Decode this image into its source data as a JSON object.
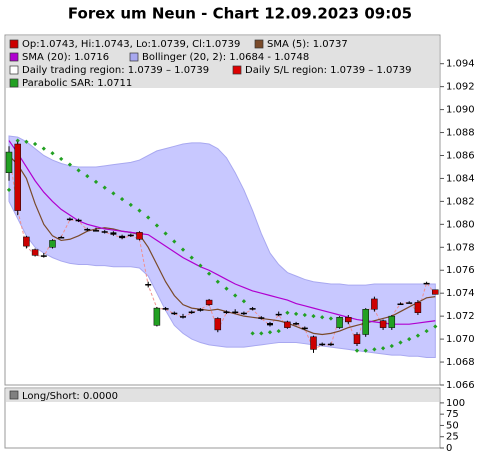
{
  "chart_data": [
    {
      "type": "candlestick",
      "title": "Forex um Neun - Chart 12.09.2023 09:05",
      "ylim": [
        1.066,
        1.0965
      ],
      "yticks": [
        1.066,
        1.068,
        {
          "value": 1.07,
          "label": "1.070"
        },
        1.072,
        1.074,
        1.076,
        1.078,
        {
          "value": 1.08,
          "label": "1.080"
        },
        1.082,
        1.084,
        1.086,
        1.088,
        {
          "value": 1.09,
          "label": "1.090"
        },
        1.092,
        1.094
      ],
      "up_color": "#22a022",
      "down_color": "#cc0000",
      "series": [
        {
          "name": "Op:1.0743, Hi:1.0743, Lo:1.0739, Cl:1.0739",
          "color": "#cc0000",
          "open": [
            1.0845,
            1.087,
            1.0789,
            1.0778,
            1.0773,
            1.078,
            1.0789,
            1.0805,
            1.0804,
            1.0796,
            1.0795,
            1.0794,
            1.0793,
            1.079,
            1.0791,
            1.0793,
            1.0748,
            1.0712,
            1.0727,
            1.0723,
            1.072,
            1.0724,
            1.0725,
            1.0734,
            1.0718,
            1.0724,
            1.0724,
            1.0723,
            1.0727,
            1.0719,
            1.0714,
            1.0722,
            1.0715,
            1.0714,
            1.071,
            1.0702,
            1.0696,
            1.0696,
            1.071,
            1.0719,
            1.0704,
            1.0704,
            1.0735,
            1.0716,
            1.071,
            1.0731,
            1.0732,
            1.0732,
            1.0749,
            1.0743
          ],
          "high": [
            1.0868,
            1.0872,
            1.079,
            1.0779,
            1.0775,
            1.0787,
            1.079,
            1.0806,
            1.0805,
            1.0797,
            1.0797,
            1.0795,
            1.0794,
            1.0791,
            1.0792,
            1.0794,
            1.075,
            1.0728,
            1.0728,
            1.0724,
            1.0722,
            1.0725,
            1.0727,
            1.0735,
            1.0719,
            1.0725,
            1.0726,
            1.0724,
            1.0728,
            1.072,
            1.0715,
            1.0724,
            1.0716,
            1.0715,
            1.0711,
            1.0703,
            1.0697,
            1.0697,
            1.072,
            1.0721,
            1.0706,
            1.0727,
            1.0737,
            1.0717,
            1.0721,
            1.0732,
            1.0733,
            1.0734,
            1.075,
            1.0743
          ],
          "low": [
            1.0838,
            1.0808,
            1.0779,
            1.0772,
            1.0771,
            1.0779,
            1.0788,
            1.0803,
            1.0802,
            1.0794,
            1.0794,
            1.0792,
            1.079,
            1.0787,
            1.0789,
            1.0786,
            1.0745,
            1.0711,
            1.0725,
            1.0721,
            1.0718,
            1.0722,
            1.0724,
            1.0729,
            1.0706,
            1.0722,
            1.0722,
            1.0721,
            1.0725,
            1.0717,
            1.0711,
            1.072,
            1.0709,
            1.0712,
            1.0708,
            1.0688,
            1.0694,
            1.0694,
            1.0709,
            1.0713,
            1.0694,
            1.0702,
            1.0724,
            1.0708,
            1.0708,
            1.073,
            1.0731,
            1.0721,
            1.0748,
            1.0739
          ],
          "close": [
            1.0863,
            1.0812,
            1.0781,
            1.0773,
            1.0772,
            1.0786,
            1.0789,
            1.0804,
            1.0803,
            1.0795,
            1.0795,
            1.0793,
            1.0791,
            1.0788,
            1.079,
            1.0787,
            1.0747,
            1.0727,
            1.0726,
            1.0722,
            1.0719,
            1.0723,
            1.0726,
            1.073,
            1.0708,
            1.0723,
            1.0723,
            1.0722,
            1.0726,
            1.0718,
            1.0712,
            1.0721,
            1.071,
            1.0713,
            1.0709,
            1.0691,
            1.0695,
            1.0695,
            1.0719,
            1.0715,
            1.0696,
            1.0726,
            1.0726,
            1.071,
            1.072,
            1.0731,
            1.0732,
            1.0723,
            1.0749,
            1.0739
          ]
        },
        {
          "name": "SMA (5): 1.0737",
          "color": "#7a4a2a",
          "values": [
            1.086,
            1.0852,
            1.084,
            1.0818,
            1.08,
            1.079,
            1.0786,
            1.0787,
            1.079,
            1.0794,
            1.0796,
            1.0797,
            1.0796,
            1.0794,
            1.0793,
            1.0791,
            1.078,
            1.0765,
            1.075,
            1.0738,
            1.073,
            1.0727,
            1.0726,
            1.0725,
            1.0726,
            1.0724,
            1.0722,
            1.072,
            1.0719,
            1.0718,
            1.0717,
            1.0716,
            1.0714,
            1.0711,
            1.0708,
            1.0705,
            1.0704,
            1.0705,
            1.0707,
            1.071,
            1.0712,
            1.0714,
            1.0716,
            1.0718,
            1.072,
            1.0724,
            1.0728,
            1.0732,
            1.0736,
            1.0737
          ]
        },
        {
          "name": "SMA (20): 1.0716",
          "color": "#b000d0",
          "values": [
            1.0873,
            1.0862,
            1.085,
            1.0838,
            1.0828,
            1.082,
            1.0813,
            1.0808,
            1.0803,
            1.08,
            1.0798,
            1.0796,
            1.0795,
            1.0794,
            1.0793,
            1.0792,
            1.0791,
            1.0786,
            1.0781,
            1.0776,
            1.0771,
            1.0767,
            1.0763,
            1.076,
            1.0756,
            1.0752,
            1.0748,
            1.0745,
            1.0742,
            1.074,
            1.0738,
            1.0736,
            1.0734,
            1.0731,
            1.0729,
            1.0727,
            1.0725,
            1.0723,
            1.0721,
            1.0719,
            1.0717,
            1.0716,
            1.0715,
            1.0714,
            1.0713,
            1.0713,
            1.0713,
            1.0714,
            1.0715,
            1.0716
          ]
        },
        {
          "name": "Bollinger (20, 2): 1.0684 - 1.0748",
          "color": "#a8a8f0",
          "upper": [
            1.0877,
            1.0876,
            1.0872,
            1.0866,
            1.086,
            1.0856,
            1.0853,
            1.0851,
            1.085,
            1.085,
            1.085,
            1.0851,
            1.0852,
            1.0853,
            1.0854,
            1.0856,
            1.086,
            1.0864,
            1.0866,
            1.0868,
            1.087,
            1.0871,
            1.0871,
            1.087,
            1.0866,
            1.0858,
            1.0845,
            1.083,
            1.0812,
            1.0792,
            1.0775,
            1.0765,
            1.0758,
            1.0755,
            1.0752,
            1.075,
            1.0749,
            1.0748,
            1.0748,
            1.0747,
            1.0747,
            1.0747,
            1.0748,
            1.0748,
            1.0748,
            1.0748,
            1.0748,
            1.0748,
            1.0748,
            1.0748
          ],
          "lower": [
            1.082,
            1.0805,
            1.079,
            1.078,
            1.0775,
            1.0771,
            1.0768,
            1.0766,
            1.0765,
            1.0765,
            1.0764,
            1.0764,
            1.0763,
            1.0763,
            1.0763,
            1.0762,
            1.0755,
            1.074,
            1.0725,
            1.0712,
            1.0705,
            1.07,
            1.0697,
            1.0695,
            1.0694,
            1.0693,
            1.0693,
            1.0693,
            1.0694,
            1.0695,
            1.0696,
            1.0697,
            1.0697,
            1.0697,
            1.0696,
            1.0695,
            1.0694,
            1.0693,
            1.0692,
            1.0691,
            1.069,
            1.0689,
            1.0688,
            1.0687,
            1.0686,
            1.0686,
            1.0685,
            1.0685,
            1.0684,
            1.0684
          ]
        },
        {
          "name": "Daily trading region: 1.0739 – 1.0739",
          "color": "#ffffff"
        },
        {
          "name": "Daily S/L region: 1.0739 – 1.0739",
          "color": "#dd0000"
        },
        {
          "name": "Parabolic SAR: 1.0711",
          "color": "#22a022",
          "values": [
            1.083,
            1.0873,
            1.0872,
            1.087,
            1.0866,
            1.0862,
            1.0857,
            1.0852,
            1.0847,
            1.0842,
            1.0837,
            1.0832,
            1.0827,
            1.0822,
            1.0817,
            1.0812,
            1.0806,
            1.0799,
            1.0792,
            1.0785,
            1.0778,
            1.0771,
            1.0764,
            1.0757,
            1.075,
            1.0744,
            1.0738,
            1.0733,
            1.0705,
            1.0705,
            1.0706,
            1.0707,
            1.0723,
            1.0722,
            1.0721,
            1.072,
            1.0719,
            1.0718,
            1.0717,
            1.0716,
            1.069,
            1.069,
            1.0691,
            1.0692,
            1.0694,
            1.0697,
            1.07,
            1.0703,
            1.0707,
            1.0711
          ]
        }
      ]
    },
    {
      "type": "indicator",
      "ylim": [
        0,
        133
      ],
      "yticks": [
        0,
        25,
        50,
        75,
        100
      ],
      "series": [
        {
          "name": "Long/Short: 0.0000",
          "color": "#808080"
        }
      ]
    }
  ]
}
